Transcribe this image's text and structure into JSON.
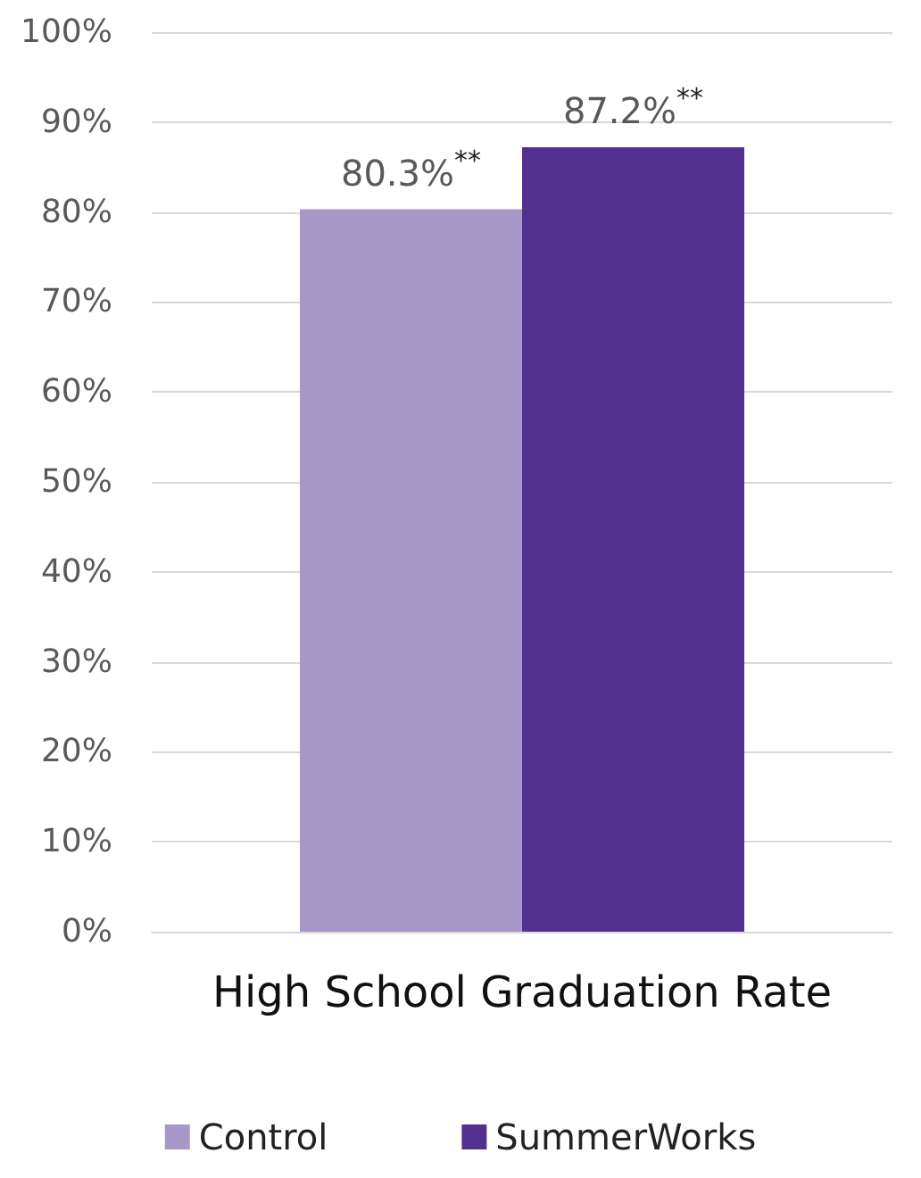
{
  "chart_data": {
    "type": "bar",
    "categories": [
      "High School Graduation Rate"
    ],
    "series": [
      {
        "name": "Control",
        "color": "#a898c8",
        "values": [
          80.3
        ],
        "value_labels": [
          "80.3%$^{**}$"
        ]
      },
      {
        "name": "SummerWorks",
        "color": "#523090",
        "values": [
          87.2
        ],
        "value_labels": [
          "87.2%$^{**}$"
        ]
      }
    ],
    "ylim": [
      0,
      100
    ],
    "yticks": [
      {
        "value": 0,
        "label": "0%"
      },
      {
        "value": 10,
        "label": "10%"
      },
      {
        "value": 20,
        "label": "20%"
      },
      {
        "value": 30,
        "label": "30%"
      },
      {
        "value": 40,
        "label": "40%"
      },
      {
        "value": 50,
        "label": "50%"
      },
      {
        "value": 60,
        "label": "60%"
      },
      {
        "value": 70,
        "label": "70%"
      },
      {
        "value": 80,
        "label": "80%"
      },
      {
        "value": 90,
        "label": "90%"
      },
      {
        "value": 100,
        "label": "100%"
      }
    ],
    "grid": "y",
    "legend": "bottom"
  }
}
